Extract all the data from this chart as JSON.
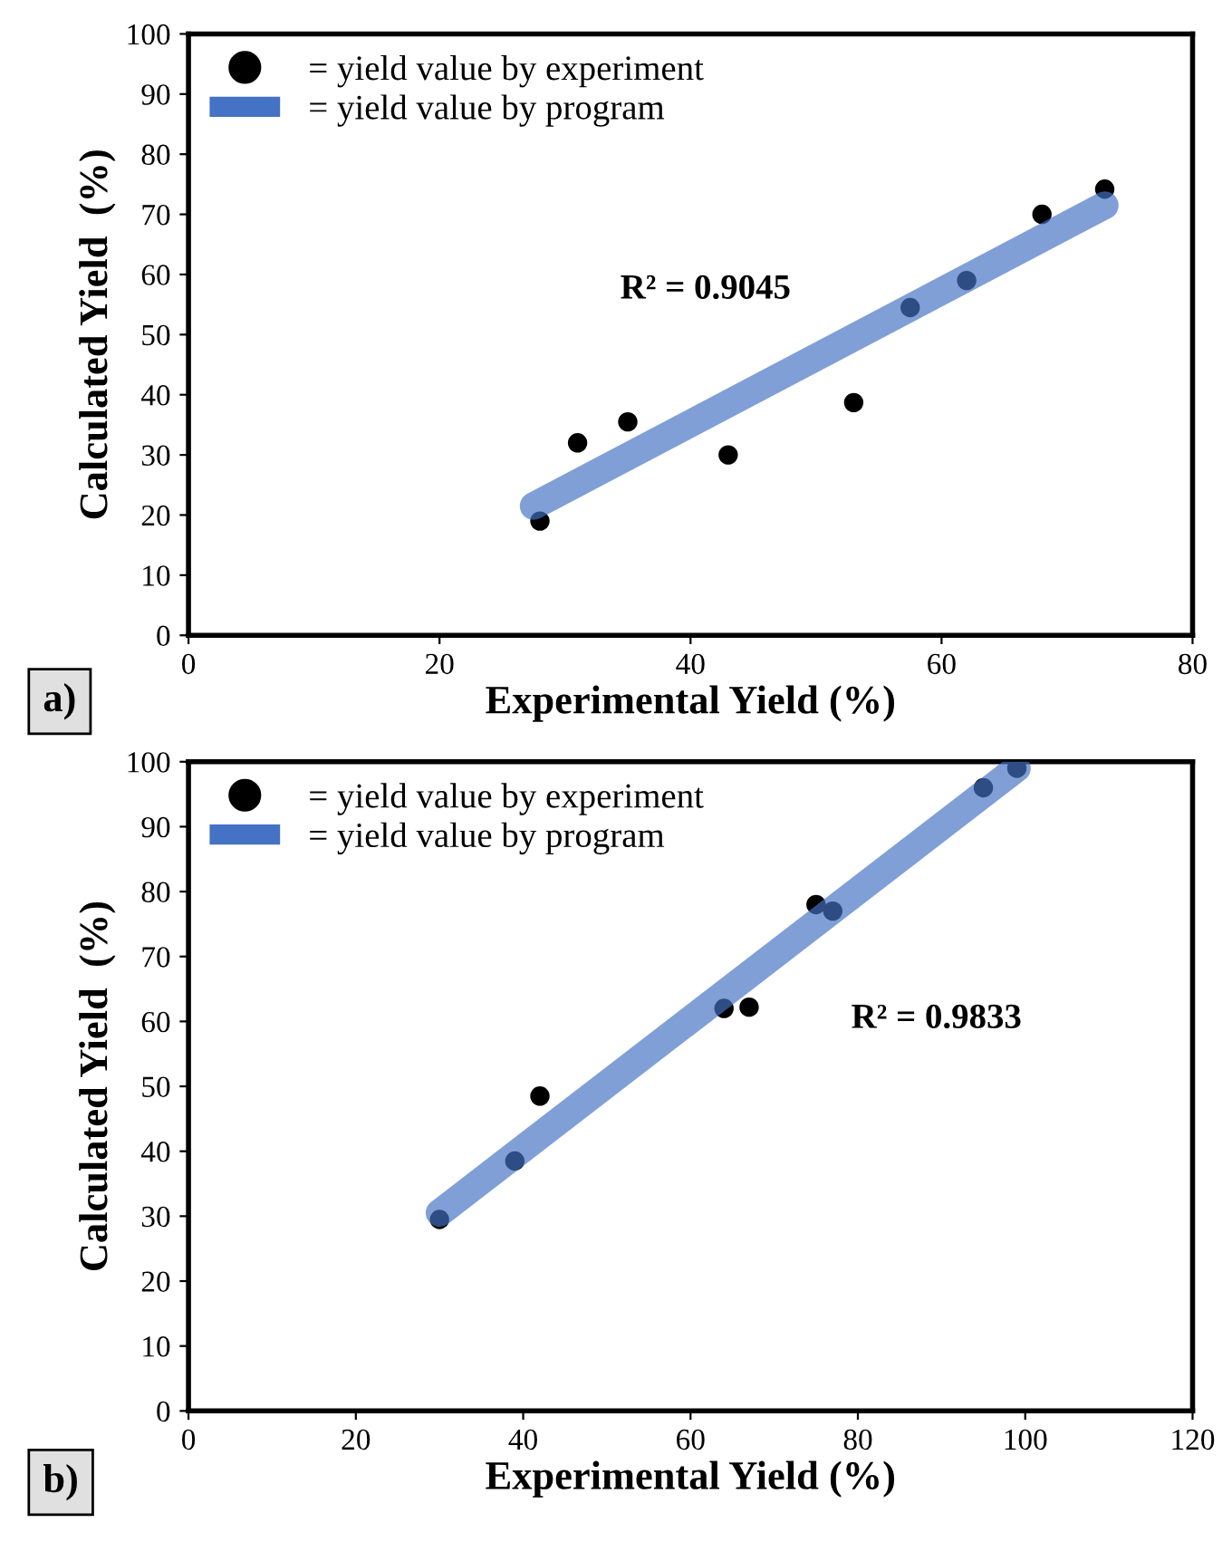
{
  "chart_data": [
    {
      "type": "scatter",
      "xlabel": "Experimental Yield (%)",
      "ylabel": "Calculated Yield  (%)",
      "annotations": [
        "R² = 0.9045",
        "a)"
      ],
      "xlim": [
        0,
        80
      ],
      "xticks": [
        0,
        20,
        40,
        60,
        80
      ],
      "ylim": [
        0,
        100
      ],
      "yticks": [
        0,
        10,
        20,
        30,
        40,
        50,
        60,
        70,
        80,
        90,
        100
      ],
      "grid": false,
      "legend": "top left",
      "series": [
        {
          "name": "= yield value by experiment",
          "marker": "circle",
          "color": "#000000",
          "x": [
            28,
            31,
            35,
            43,
            53,
            57.5,
            62,
            68,
            73
          ],
          "values": [
            19,
            32,
            35.5,
            30,
            38.7,
            54.5,
            59,
            70,
            74.2
          ]
        },
        {
          "name": "= yield value by program",
          "type": "line",
          "color": "#4472c4",
          "x": [
            27.5,
            73
          ],
          "values": [
            21.5,
            71.5
          ]
        }
      ]
    },
    {
      "type": "scatter",
      "xlabel": "Experimental Yield (%)",
      "ylabel": "Calculated Yield  (%)",
      "annotations": [
        "R² = 0.9833",
        "b)"
      ],
      "xlim": [
        0,
        120
      ],
      "xticks": [
        0,
        20,
        40,
        60,
        80,
        100,
        120
      ],
      "ylim": [
        0,
        100
      ],
      "yticks": [
        0,
        10,
        20,
        30,
        40,
        50,
        60,
        70,
        80,
        90,
        100
      ],
      "grid": false,
      "legend": "top left",
      "series": [
        {
          "name": "= yield value by experiment",
          "marker": "circle",
          "color": "#000000",
          "x": [
            30,
            39,
            42,
            64,
            67,
            75,
            77,
            95,
            99
          ],
          "values": [
            29.5,
            38.5,
            48.5,
            62,
            62.2,
            78,
            77,
            96,
            99
          ]
        },
        {
          "name": "= yield value by program",
          "type": "line",
          "color": "#4472c4",
          "x": [
            30,
            99
          ],
          "values": [
            30.5,
            99
          ]
        }
      ]
    }
  ]
}
